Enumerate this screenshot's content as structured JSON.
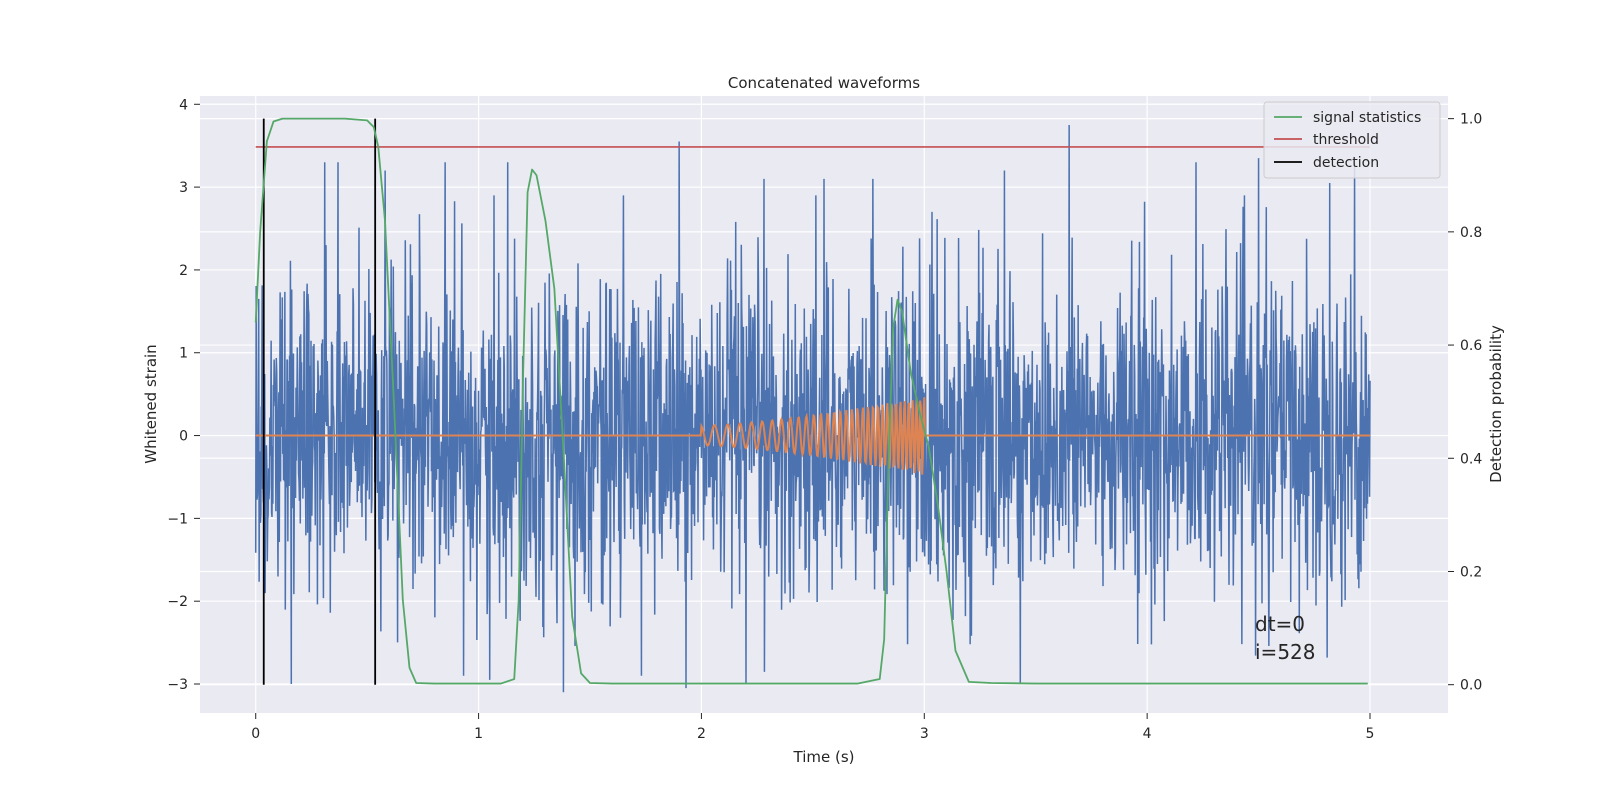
{
  "chart_data": {
    "type": "line",
    "title": "Concatenated waveforms",
    "xlabel": "Time (s)",
    "ylabel_left": "Whitened strain",
    "ylabel_right": "Detection probability",
    "xlim": [
      -0.25,
      5.35
    ],
    "ylim_left": [
      -3.35,
      4.1
    ],
    "ylim_right": [
      -0.05,
      1.04
    ],
    "xticks": [
      0,
      1,
      2,
      3,
      4,
      5
    ],
    "yticks_left": [
      -3,
      -2,
      -1,
      0,
      1,
      2,
      3,
      4
    ],
    "yticks_right": [
      0.0,
      0.2,
      0.4,
      0.6,
      0.8,
      1.0
    ],
    "ytick_labels_left": [
      "−3",
      "−2",
      "−1",
      "0",
      "1",
      "2",
      "3",
      "4"
    ],
    "ytick_labels_right": [
      "0.0",
      "0.2",
      "0.4",
      "0.6",
      "0.8",
      "1.0"
    ],
    "grid": true,
    "legend_position": "top-right",
    "colors": {
      "strain": "#4c72b0",
      "template": "#dd8452",
      "signal_statistics": "#55a868",
      "threshold": "#c44e52",
      "detection": "#000000",
      "background": "#eaeaf2"
    },
    "series": [
      {
        "name": "signal statistics",
        "axis": "right",
        "x": [
          0.0,
          0.02,
          0.05,
          0.08,
          0.12,
          0.2,
          0.3,
          0.4,
          0.5,
          0.53,
          0.55,
          0.58,
          0.62,
          0.66,
          0.69,
          0.72,
          0.8,
          0.9,
          1.0,
          1.1,
          1.16,
          1.18,
          1.2,
          1.22,
          1.24,
          1.26,
          1.3,
          1.34,
          1.38,
          1.42,
          1.46,
          1.5,
          1.6,
          1.8,
          2.0,
          2.2,
          2.5,
          2.7,
          2.8,
          2.82,
          2.84,
          2.86,
          2.88,
          2.9,
          2.94,
          2.98,
          3.02,
          3.06,
          3.1,
          3.14,
          3.2,
          3.3,
          3.5,
          4.0,
          4.5,
          4.99
        ],
        "values": [
          0.64,
          0.8,
          0.96,
          0.995,
          1.0,
          1.0,
          1.0,
          1.0,
          0.997,
          0.985,
          0.95,
          0.82,
          0.5,
          0.15,
          0.03,
          0.003,
          0.002,
          0.002,
          0.002,
          0.002,
          0.01,
          0.15,
          0.55,
          0.87,
          0.91,
          0.9,
          0.82,
          0.7,
          0.42,
          0.12,
          0.02,
          0.003,
          0.002,
          0.002,
          0.002,
          0.002,
          0.002,
          0.002,
          0.01,
          0.08,
          0.4,
          0.63,
          0.68,
          0.66,
          0.55,
          0.48,
          0.42,
          0.32,
          0.2,
          0.06,
          0.005,
          0.003,
          0.002,
          0.002,
          0.002,
          0.002
        ]
      },
      {
        "name": "threshold",
        "axis": "right",
        "value": 0.95,
        "x_range": [
          0.0,
          5.0
        ]
      },
      {
        "name": "detection",
        "axis": "right",
        "x": [
          0.036,
          0.536
        ],
        "range": [
          0.0,
          1.0
        ]
      }
    ],
    "unlabeled_series": [
      {
        "id": "whitened-strain",
        "axis": "left",
        "x_range": [
          0.0,
          5.0
        ],
        "spike_times": [
          0.31,
          0.37,
          0.58,
          0.85,
          1.13,
          1.9,
          2.28,
          2.55,
          2.77,
          3.36,
          3.65,
          4.22,
          4.5,
          4.82,
          4.93
        ],
        "spike_values": [
          3.3,
          3.3,
          3.2,
          3.3,
          3.3,
          3.55,
          3.1,
          3.1,
          3.1,
          3.2,
          3.75,
          3.3,
          3.35,
          3.05,
          3.3
        ],
        "min_values": [
          -3.0,
          -2.95,
          -3.1,
          -3.05,
          -3.0,
          -3.0
        ],
        "min_times": [
          0.16,
          1.05,
          1.38,
          1.93,
          2.2,
          3.43
        ]
      },
      {
        "id": "injected-chirp",
        "axis": "left",
        "x_range": [
          0.0,
          5.0
        ],
        "chirp_start": 2.0,
        "chirp_end": 3.0,
        "amp_start": 0.12,
        "amp_end": 0.48,
        "f_start": 16,
        "f_end": 60
      }
    ],
    "annotations": [
      "dt=0",
      "i=528"
    ]
  }
}
